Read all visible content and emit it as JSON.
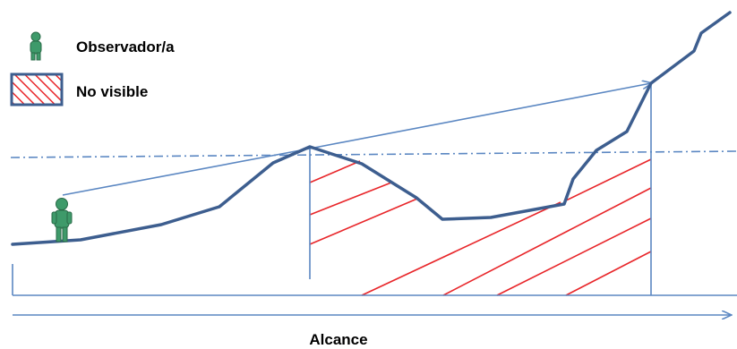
{
  "legend": {
    "observer_label": "Observador/a",
    "hidden_label": "No visible",
    "observer_icon": "person-icon",
    "hidden_icon": "hatched-square-icon"
  },
  "axis": {
    "x_label": "Alcance"
  },
  "colors": {
    "terrain": "#3d5e8f",
    "sight_line": "#5b87c2",
    "horizon": "#5b87c2",
    "hatch": "#e8262a",
    "axis": "#5b87c2",
    "observer_body": "#3e9a6a",
    "observer_outline": "#2a6b48",
    "legend_box_fill": "#ffffff",
    "legend_box_border": "#3d5e8f"
  }
}
